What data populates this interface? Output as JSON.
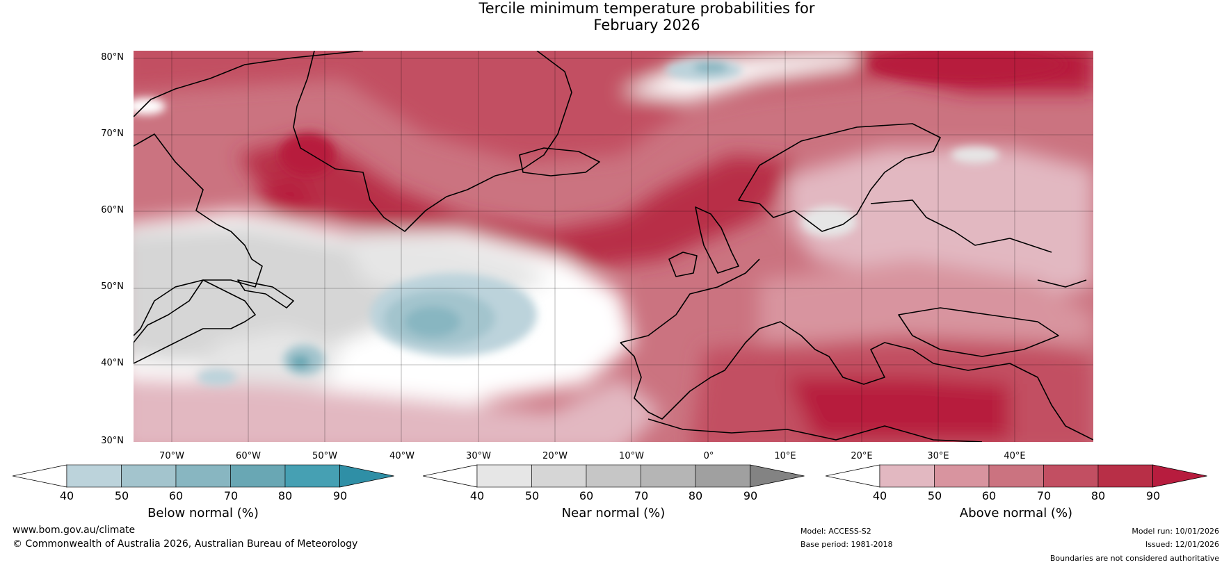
{
  "title": {
    "line1": "Tercile minimum temperature probabilities for",
    "line2": "February 2026"
  },
  "map": {
    "lat_labels": [
      "80°N",
      "70°N",
      "60°N",
      "50°N",
      "40°N",
      "30°N"
    ],
    "lon_labels": [
      "70°W",
      "60°W",
      "50°W",
      "40°W",
      "30°W",
      "20°W",
      "10°W",
      "0°",
      "10°E",
      "20°E",
      "30°E",
      "40°E"
    ],
    "extent": {
      "lon": [
        -75,
        50
      ],
      "lat": [
        30,
        81
      ]
    },
    "gridlines": true
  },
  "colorbars": [
    {
      "name": "below",
      "label": "Below normal (%)",
      "ticks": [
        "40",
        "50",
        "60",
        "70",
        "80",
        "90"
      ],
      "colors": [
        "#ffffff",
        "#bcd3db",
        "#a3c4cd",
        "#88b6c1",
        "#69a7b4",
        "#46a0b3",
        "#2f8fa6"
      ]
    },
    {
      "name": "near",
      "label": "Near normal (%)",
      "ticks": [
        "40",
        "50",
        "60",
        "70",
        "80",
        "90"
      ],
      "colors": [
        "#ffffff",
        "#e6e6e6",
        "#d6d6d6",
        "#c6c6c6",
        "#b5b5b5",
        "#a0a0a0",
        "#838383"
      ]
    },
    {
      "name": "above",
      "label": "Above normal (%)",
      "ticks": [
        "40",
        "50",
        "60",
        "70",
        "80",
        "90"
      ],
      "colors": [
        "#ffffff",
        "#e2b8c1",
        "#d8949f",
        "#cb7380",
        "#c24f62",
        "#b82f47",
        "#b71c3e"
      ]
    }
  ],
  "footer": {
    "site": "www.bom.gov.au/climate",
    "copyright": "© Commonwealth of Australia 2026, Australian Bureau of Meteorology",
    "model": "Model: ACCESS-S2",
    "base_period": "Base period: 1981-2018",
    "model_run": "Model run: 10/01/2026",
    "issued": "Issued: 12/01/2026",
    "disclaimer": "Boundaries are not considered authoritative"
  }
}
